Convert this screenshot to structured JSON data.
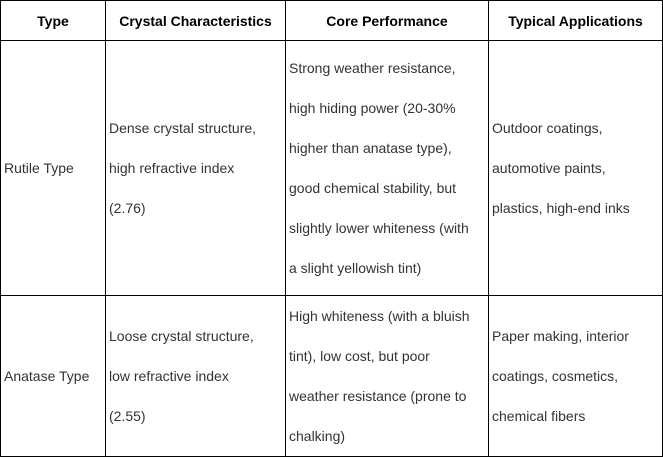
{
  "table": {
    "headers": [
      "Type",
      "Crystal Characteristics",
      "Core Performance",
      "Typical Applications"
    ],
    "rows": [
      {
        "type": "Rutile Type",
        "crystal": "Dense crystal structure,\nhigh refractive index\n(2.76)",
        "performance": "Strong weather resistance,\nhigh hiding power (20-30%\nhigher than anatase type),\ngood chemical stability, but\nslightly lower whiteness (with\na slight yellowish tint)",
        "applications": "Outdoor coatings,\nautomotive paints,\nplastics, high-end inks"
      },
      {
        "type": "Anatase Type",
        "crystal": "Loose crystal structure,\nlow refractive index\n(2.55)",
        "performance": "High whiteness (with a bluish\ntint), low cost, but poor\nweather resistance (prone to\nchalking)",
        "applications": "Paper making, interior\ncoatings, cosmetics,\nchemical fibers"
      }
    ]
  },
  "colors": {
    "border": "#000000",
    "header_text": "#000000",
    "body_text": "#333333",
    "background": "#ffffff"
  }
}
